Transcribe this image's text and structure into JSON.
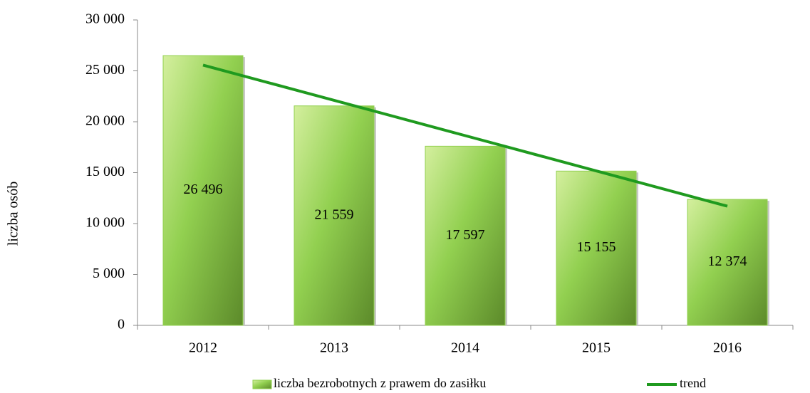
{
  "chart_data": {
    "type": "bar",
    "y_label": "liczba osób",
    "categories": [
      "2012",
      "2013",
      "2014",
      "2015",
      "2016"
    ],
    "series": [
      {
        "name": "liczba bezrobotnych z prawem do zasiłku",
        "color": "#92d050",
        "values": [
          26496,
          21559,
          17597,
          15155,
          12374
        ],
        "value_labels": [
          "26 496",
          "21 559",
          "17 597",
          "15 155",
          "12 374"
        ]
      },
      {
        "name": "trend",
        "type": "line",
        "color": "#1f9a1f",
        "values": [
          25566,
          22101,
          18636,
          15171,
          11707
        ]
      }
    ],
    "ylim": [
      0,
      30000
    ],
    "yticks": [
      0,
      {
        "value": 5000,
        "label": "5 000"
      },
      {
        "value": 10000,
        "label": "10 000"
      },
      {
        "value": 15000,
        "label": "15 000"
      },
      {
        "value": 20000,
        "label": "20 000"
      },
      {
        "value": 25000,
        "label": "25 000"
      },
      {
        "value": 30000,
        "label": "30 000"
      }
    ],
    "grid": false,
    "legend": "bottom"
  }
}
